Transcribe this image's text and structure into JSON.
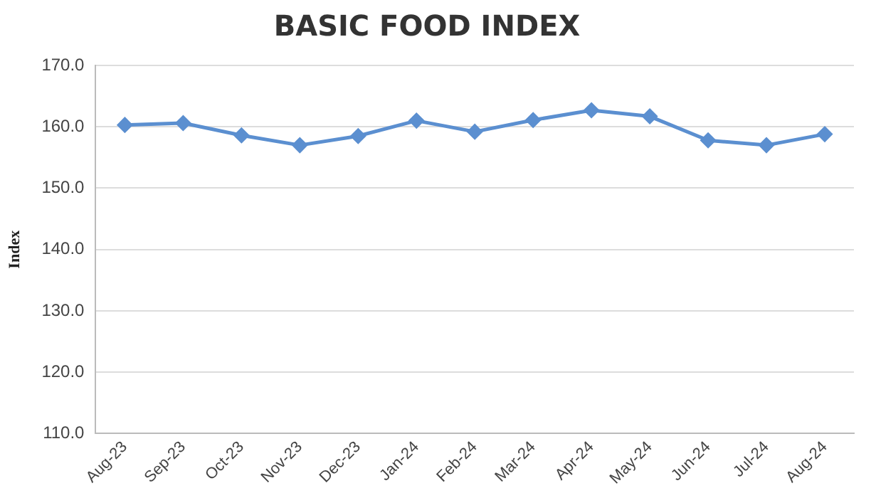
{
  "chart_data": {
    "type": "line",
    "title": "BASIC FOOD INDEX",
    "ylabel": "Index",
    "categories": [
      "Aug-23",
      "Sep-23",
      "Oct-23",
      "Nov-23",
      "Dec-23",
      "Jan-24",
      "Feb-24",
      "Mar-24",
      "Apr-24",
      "May-24",
      "Jun-24",
      "Jul-24",
      "Aug-24"
    ],
    "series": [
      {
        "color": "#5b8fd0",
        "values": [
          160.3,
          160.6,
          158.6,
          157.0,
          158.5,
          161.0,
          159.2,
          161.1,
          162.7,
          161.7,
          157.8,
          157.0,
          158.8
        ]
      }
    ],
    "ylim": [
      110,
      170
    ],
    "yticks": [
      {
        "value": 110,
        "label": "110.0"
      },
      {
        "value": 120,
        "label": "120.0"
      },
      {
        "value": 130,
        "label": "130.0"
      },
      {
        "value": 140,
        "label": "140.0"
      },
      {
        "value": 150,
        "label": "150.0"
      },
      {
        "value": 160,
        "label": "160.0"
      },
      {
        "value": 170,
        "label": "170.0"
      }
    ],
    "grid": "y",
    "legend": false,
    "marker": "diamond",
    "line_style": "solid"
  }
}
